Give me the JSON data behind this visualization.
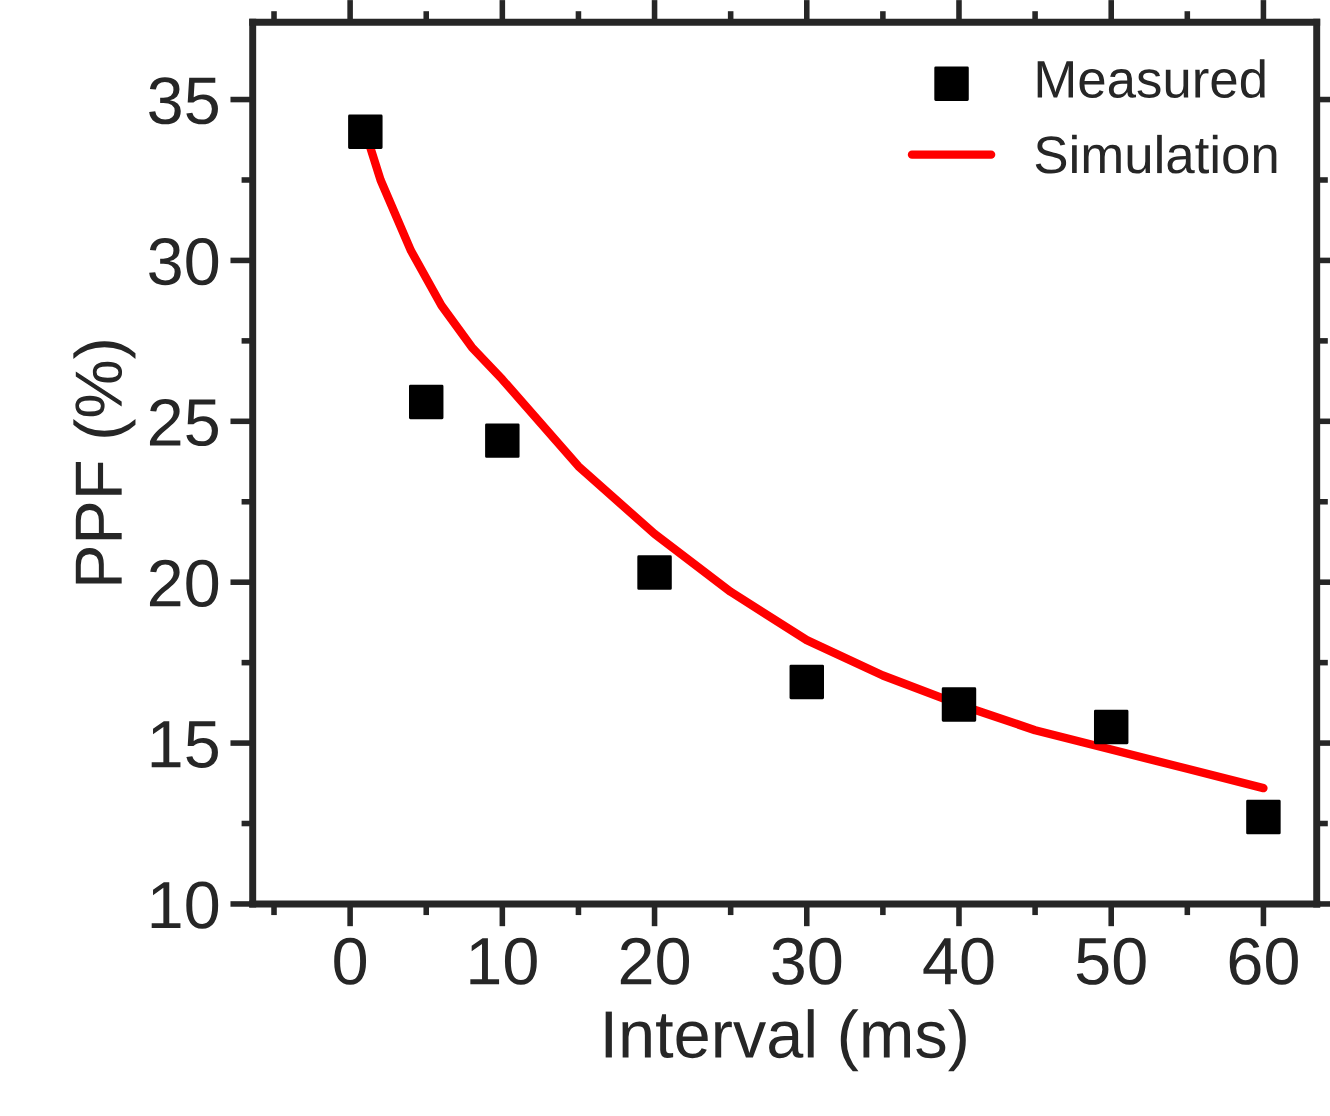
{
  "chart_data": {
    "type": "scatter",
    "xlabel": "Interval (ms)",
    "ylabel": "PPF (%)",
    "xlim": [
      -6.4,
      63.5
    ],
    "ylim": [
      10,
      37.4
    ],
    "xticks": [
      0,
      10,
      20,
      30,
      40,
      50,
      60
    ],
    "yticks": [
      10,
      15,
      20,
      25,
      30,
      35
    ],
    "grid": false,
    "legend": "top right",
    "series": [
      {
        "name": "Measured",
        "marker": "square",
        "color": "#000000",
        "x": [
          1,
          5,
          10,
          20,
          30,
          40,
          50,
          60
        ],
        "values": [
          34.0,
          25.6,
          24.4,
          20.3,
          16.9,
          16.2,
          15.5,
          12.7
        ]
      },
      {
        "name": "Simulation",
        "type": "line",
        "line_style": "solid",
        "color": "#ff0000",
        "x": [
          1,
          2,
          4,
          6,
          8,
          10,
          15,
          20,
          25,
          30,
          35,
          40,
          45,
          50,
          55,
          60
        ],
        "values": [
          34.0,
          32.5,
          30.3,
          28.6,
          27.3,
          26.3,
          23.6,
          21.5,
          19.7,
          18.2,
          17.1,
          16.2,
          15.4,
          14.8,
          14.2,
          13.6
        ]
      }
    ]
  }
}
